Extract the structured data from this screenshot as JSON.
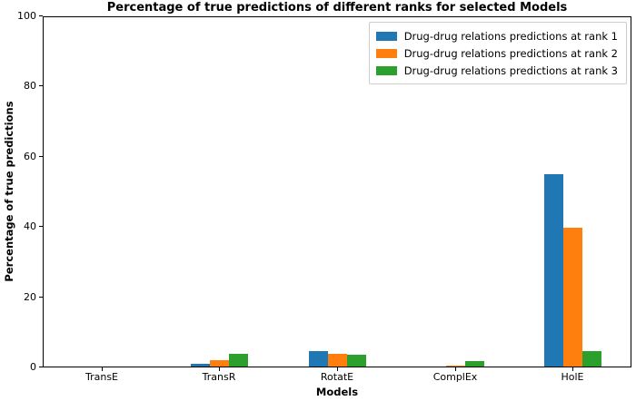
{
  "figure": {
    "background": "#ffffff"
  },
  "chart_data": {
    "type": "bar",
    "title": "Percentage of true predictions of different ranks for selected Models",
    "xlabel": "Models",
    "ylabel": "Percentage of true predictions",
    "categories": [
      "TransE",
      "TransR",
      "RotatE",
      "ComplEx",
      "HolE"
    ],
    "series": [
      {
        "name": "Drug-drug relations predictions at rank 1",
        "color": "#1f77b4",
        "values": [
          0,
          0.7,
          4.4,
          0,
          54.7
        ]
      },
      {
        "name": "Drug-drug relations predictions at rank 2",
        "color": "#ff7f0e",
        "values": [
          0,
          1.8,
          3.7,
          0.3,
          39.6
        ]
      },
      {
        "name": "Drug-drug relations predictions at rank 3",
        "color": "#2ca02c",
        "values": [
          0,
          3.6,
          3.3,
          1.6,
          4.4
        ]
      }
    ],
    "ylim": [
      0,
      100
    ],
    "yticks": [
      0,
      20,
      40,
      60,
      80,
      100
    ],
    "legend_position": "upper right",
    "grid": false,
    "axis_color": "#000000"
  }
}
